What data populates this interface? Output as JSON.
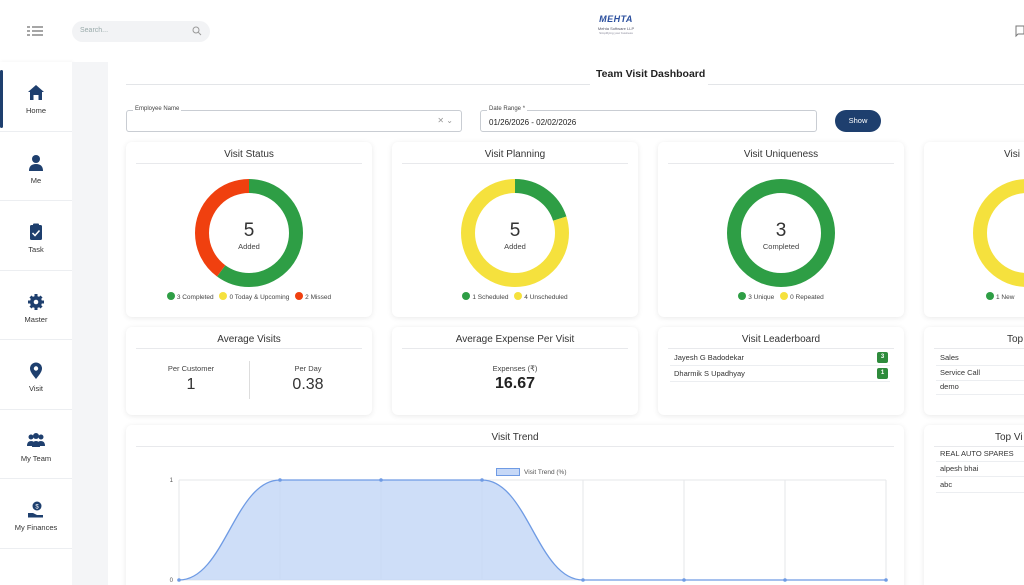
{
  "header": {
    "search_placeholder": "Search...",
    "logo_text": "MEHTA",
    "logo_subtitle": "Mehta Software LLP",
    "logo_tagline": "Simplifying your business"
  },
  "sidebar": {
    "items": [
      {
        "label": "Home",
        "icon": "home-icon",
        "active": true
      },
      {
        "label": "Me",
        "icon": "user-icon"
      },
      {
        "label": "Task",
        "icon": "clipboard-check-icon"
      },
      {
        "label": "Master",
        "icon": "gear-icon"
      },
      {
        "label": "Visit",
        "icon": "map-pin-icon"
      },
      {
        "label": "My Team",
        "icon": "team-icon"
      },
      {
        "label": "My Finances",
        "icon": "finance-icon"
      }
    ]
  },
  "page": {
    "title": "Team Visit Dashboard"
  },
  "filters": {
    "employee_label": "Employee Name",
    "employee_value": "",
    "date_label": "Date Range *",
    "date_value": "01/26/2026 - 02/02/2026",
    "show_label": "Show"
  },
  "colors": {
    "green": "#2e9e45",
    "yellow": "#f5e13d",
    "red": "#f0400f",
    "navy": "#1e3f6e",
    "trend_fill": "#c6d8f7",
    "trend_line": "#6f9be4"
  },
  "cards": {
    "visit_status": {
      "title": "Visit Status",
      "center_value": "5",
      "center_label": "Added",
      "segments": [
        {
          "value": 3,
          "color": "#2e9e45"
        },
        {
          "value": 0,
          "color": "#f5e13d"
        },
        {
          "value": 2,
          "color": "#f0400f"
        }
      ],
      "legend": [
        "3 Completed",
        "0 Today & Upcoming",
        "2 Missed"
      ]
    },
    "visit_planning": {
      "title": "Visit Planning",
      "center_value": "5",
      "center_label": "Added",
      "segments": [
        {
          "value": 1,
          "color": "#2e9e45"
        },
        {
          "value": 4,
          "color": "#f5e13d"
        }
      ],
      "legend": [
        "1 Scheduled",
        "4 Unscheduled"
      ]
    },
    "visit_uniqueness": {
      "title": "Visit Uniqueness",
      "center_value": "3",
      "center_label": "Completed",
      "segments": [
        {
          "value": 3,
          "color": "#2e9e45"
        },
        {
          "value": 0,
          "color": "#f5e13d"
        }
      ],
      "legend": [
        "3 Unique",
        "0 Repeated"
      ]
    },
    "visit_partial": {
      "title": "Visi",
      "segments": [
        {
          "value": 1,
          "color": "#2e9e45"
        },
        {
          "value": 4,
          "color": "#f5e13d"
        }
      ],
      "legend": [
        "1 New"
      ]
    },
    "average_visits": {
      "title": "Average Visits",
      "per_customer_label": "Per Customer",
      "per_customer_value": "1",
      "per_day_label": "Per Day",
      "per_day_value": "0.38"
    },
    "avg_expense": {
      "title": "Average Expense Per Visit",
      "label": "Expenses (₹)",
      "value": "16.67"
    },
    "leaderboard": {
      "title": "Visit Leaderboard",
      "rows": [
        {
          "name": "Jayesh G Badodekar",
          "count": "3"
        },
        {
          "name": "Dharmik S Upadhyay",
          "count": "1"
        }
      ]
    },
    "top_partial": {
      "title": "Top",
      "rows": [
        "Sales",
        "Service Call",
        "demo"
      ]
    },
    "top_visits_partial": {
      "title": "Top Vi",
      "rows": [
        "REAL AUTO SPARES",
        "alpesh bhai",
        "abc"
      ]
    },
    "visit_trend": {
      "title": "Visit Trend"
    }
  },
  "chart_data": {
    "type": "area",
    "title": "Visit Trend",
    "series": [
      {
        "name": "Visit Trend (%)",
        "values": [
          0,
          1,
          1,
          1,
          0,
          0,
          0,
          0
        ]
      }
    ],
    "x": [
      0,
      1,
      2,
      3,
      4,
      5,
      6,
      7
    ],
    "ylim": [
      0,
      1
    ],
    "yticks": [
      "0",
      "1"
    ],
    "grid": true,
    "legend": "top"
  }
}
